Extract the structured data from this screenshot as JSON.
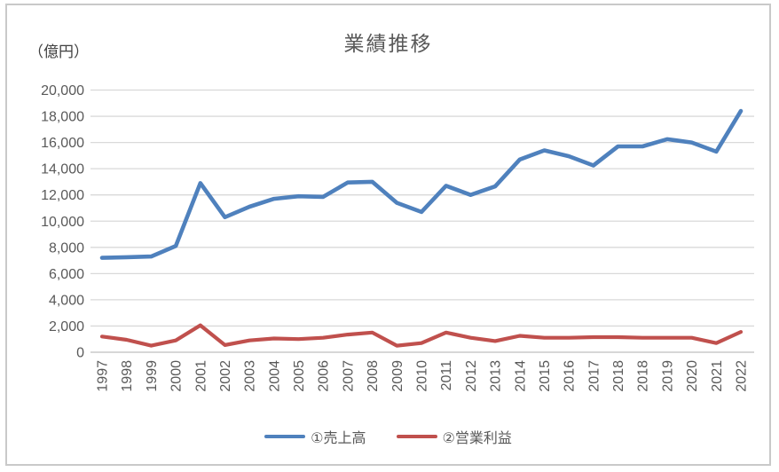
{
  "title": "業績推移",
  "unit_label": "（億円）",
  "legend": [
    {
      "label": "①売上高",
      "color": "#4F81BD"
    },
    {
      "label": "②営業利益",
      "color": "#C0504D"
    }
  ],
  "colors": {
    "gridline": "#D9D9D9",
    "axis_line": "#BFBFBF",
    "tick_label": "#595959",
    "title": "#595959",
    "series_sales": "#4F81BD",
    "series_operating_profit": "#C0504D",
    "frame_border": "#C9C9C9"
  },
  "chart_data": {
    "type": "line",
    "title": "業績推移",
    "ylabel": "（億円）",
    "xlabel": "",
    "ylim": [
      0,
      20000
    ],
    "ytick_step": 2000,
    "ytick_labels": [
      "0",
      "2,000",
      "4,000",
      "6,000",
      "8,000",
      "10,000",
      "12,000",
      "14,000",
      "16,000",
      "18,000",
      "20,000"
    ],
    "grid": true,
    "legend_position": "bottom",
    "categories": [
      "1997",
      "1998",
      "1999",
      "2000",
      "2001",
      "2002",
      "2003",
      "2004",
      "2005",
      "2006",
      "2007",
      "2008",
      "2009",
      "2010",
      "2011",
      "2012",
      "2013",
      "2014",
      "2015",
      "2016",
      "2017",
      "2018",
      "2018",
      "2019",
      "2020",
      "2021",
      "2022"
    ],
    "series": [
      {
        "name": "①売上高",
        "color": "#4F81BD",
        "values": [
          7200,
          7250,
          7300,
          8100,
          12900,
          10300,
          11100,
          11700,
          11900,
          11850,
          12950,
          13000,
          11400,
          10700,
          12700,
          12000,
          12650,
          14700,
          15400,
          14950,
          14250,
          15700,
          15700,
          16250,
          16000,
          15300,
          18400
        ]
      },
      {
        "name": "②営業利益",
        "color": "#C0504D",
        "values": [
          1200,
          950,
          500,
          900,
          2050,
          550,
          900,
          1050,
          1000,
          1100,
          1350,
          1500,
          500,
          700,
          1500,
          1100,
          850,
          1250,
          1100,
          1100,
          1150,
          1150,
          1100,
          1100,
          1100,
          700,
          1550
        ]
      }
    ]
  }
}
